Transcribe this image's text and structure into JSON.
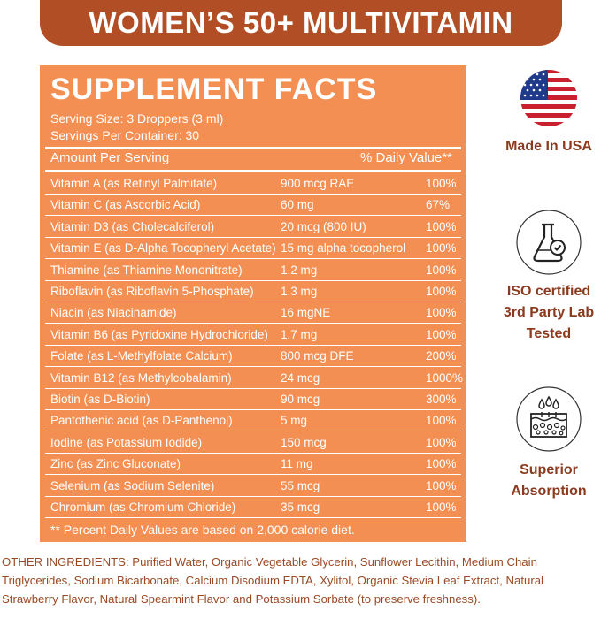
{
  "title": "WOMEN’S 50+ MULTIVITAMIN",
  "facts": {
    "header": "SUPPLEMENT FACTS",
    "serving_size": "Serving Size: 3 Droppers (3 ml)",
    "servings_per_container": "Servings Per Container: 30",
    "col_amount": "Amount Per Serving",
    "col_dv": "% Daily Value**",
    "rows": [
      {
        "name": "Vitamin A (as Retinyl Palmitate)",
        "amount": "900 mcg RAE",
        "dv": "100%"
      },
      {
        "name": "Vitamin C (as Ascorbic Acid)",
        "amount": "60 mg",
        "dv": "67%"
      },
      {
        "name": "Vitamin D3 (as Cholecalciferol)",
        "amount": "20 mcg (800 IU)",
        "dv": "100%"
      },
      {
        "name": "Vitamin E (as D-Alpha Tocopheryl Acetate)",
        "amount": "15 mg alpha tocopherol",
        "dv": "100%"
      },
      {
        "name": "Thiamine (as Thiamine Mononitrate)",
        "amount": "1.2 mg",
        "dv": "100%"
      },
      {
        "name": "Riboflavin (as Riboflavin 5-Phosphate)",
        "amount": "1.3 mg",
        "dv": "100%"
      },
      {
        "name": "Niacin (as Niacinamide)",
        "amount": "16 mgNE",
        "dv": "100%"
      },
      {
        "name": "Vitamin B6 (as Pyridoxine Hydrochloride)",
        "amount": "1.7 mg",
        "dv": "100%"
      },
      {
        "name": "Folate (as L-Methylfolate Calcium)",
        "amount": "800 mcg DFE",
        "dv": "200%"
      },
      {
        "name": "Vitamin B12 (as Methylcobalamin)",
        "amount": "24 mcg",
        "dv": "1000%"
      },
      {
        "name": "Biotin (as D-Biotin)",
        "amount": "90 mcg",
        "dv": "300%"
      },
      {
        "name": "Pantothenic acid (as D-Panthenol)",
        "amount": "5 mg",
        "dv": "100%"
      },
      {
        "name": "Iodine (as Potassium Iodide)",
        "amount": "150 mcg",
        "dv": "100%"
      },
      {
        "name": "Zinc (as Zinc Gluconate)",
        "amount": "11 mg",
        "dv": "100%"
      },
      {
        "name": "Selenium (as Sodium Selenite)",
        "amount": "55 mcg",
        "dv": "100%"
      },
      {
        "name": "Chromium (as Chromium Chloride)",
        "amount": "35 mcg",
        "dv": "100%"
      }
    ],
    "footnote": "** Percent Daily Values are based on 2,000 calorie diet."
  },
  "badges": {
    "usa": {
      "label": "Made In USA",
      "icon": "us-flag-icon"
    },
    "lab": {
      "line1": "ISO certified",
      "line2": "3rd Party Lab",
      "line3": "Tested",
      "icon": "lab-flask-icon"
    },
    "absorption": {
      "line1": "Superior",
      "line2": "Absorption",
      "icon": "skin-absorption-icon"
    }
  },
  "other_ingredients": "OTHER INGREDIENTS: Purified Water, Organic Vegetable Glycerin, Sunflower Lecithin, Medium Chain Triglycerides, Sodium Bicarbonate, Calcium Disodium EDTA, Xylitol, Organic Stevia Leaf Extract, Natural Strawberry Flavor, Natural Spearmint Flavor and Potassium Sorbate (to preserve freshness).",
  "colors": {
    "brand": "#b14e25",
    "panel": "#f38f52",
    "text": "#8a3b1e"
  }
}
